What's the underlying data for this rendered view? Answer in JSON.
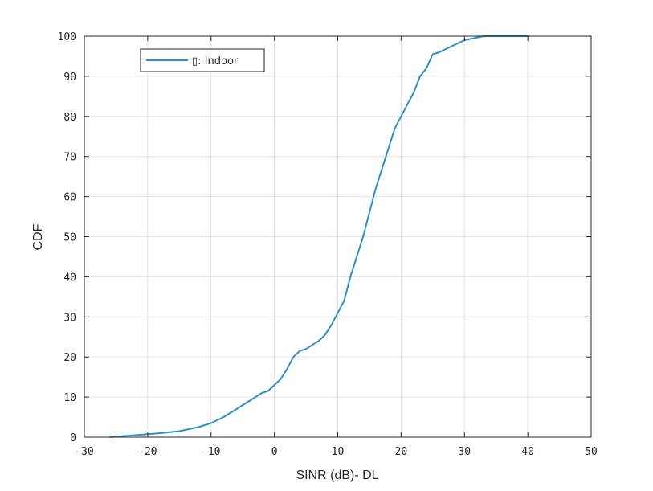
{
  "chart_data": {
    "type": "line",
    "xlabel": "SINR (dB)- DL",
    "ylabel": "CDF",
    "xlim": [
      -30,
      50
    ],
    "ylim": [
      0,
      100
    ],
    "xticks": [
      -30,
      -20,
      -10,
      0,
      10,
      20,
      30,
      40,
      50
    ],
    "yticks": [
      0,
      10,
      20,
      30,
      40,
      50,
      60,
      70,
      80,
      90,
      100
    ],
    "grid": true,
    "legend_position": "top-left",
    "series": [
      {
        "name": "▯: Indoor",
        "color": "#2f8fc7",
        "x": [
          -26,
          -22,
          -18,
          -15,
          -12,
          -10,
          -8,
          -6,
          -4,
          -3,
          -2,
          -1,
          0,
          1,
          2,
          3,
          4,
          5,
          6,
          7,
          8,
          9,
          10,
          11,
          12,
          13,
          14,
          15,
          16,
          17,
          18,
          19,
          20,
          21,
          22,
          23,
          24,
          25,
          26,
          28,
          30,
          33,
          36,
          40
        ],
        "y": [
          0,
          0.5,
          1,
          1.5,
          2.5,
          3.5,
          5,
          7,
          9,
          10,
          11,
          11.5,
          13,
          14.5,
          17,
          20,
          21.5,
          22,
          23,
          24,
          25.5,
          28,
          31,
          34,
          40,
          45,
          50,
          56,
          62,
          67,
          72,
          77,
          80,
          83,
          86,
          90,
          92,
          95.5,
          96,
          97.5,
          99,
          100,
          100,
          100
        ]
      }
    ]
  }
}
